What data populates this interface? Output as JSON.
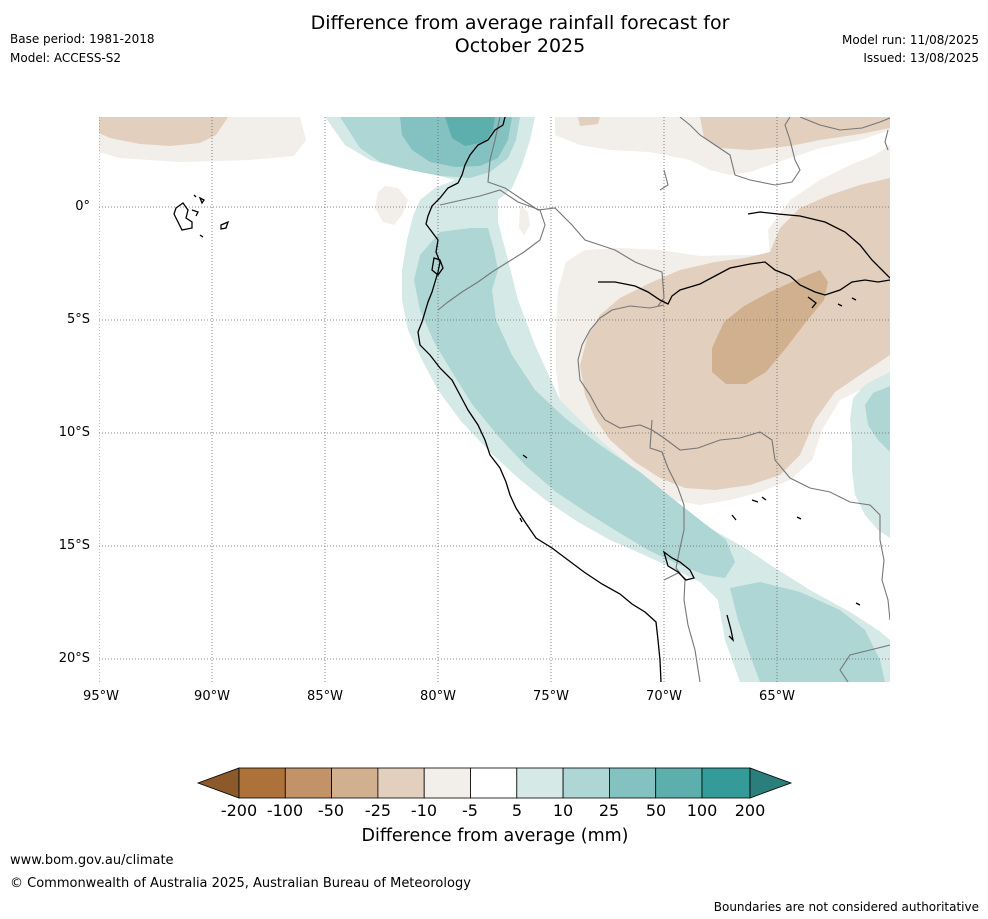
{
  "header": {
    "title_line1": "Difference from average rainfall forecast for",
    "title_line2": "October 2025",
    "base_period": "Base period: 1981-2018",
    "model": "Model: ACCESS-S2",
    "model_run": "Model run: 11/08/2025",
    "issued": "Issued: 13/08/2025"
  },
  "map": {
    "lat_labels": [
      "0°",
      "5°S",
      "10°S",
      "15°S",
      "20°S"
    ],
    "lon_labels": [
      "95°W",
      "90°W",
      "85°W",
      "80°W",
      "75°W",
      "70°W",
      "65°W"
    ]
  },
  "colorbar": {
    "ticks": [
      "-200",
      "-100",
      "-50",
      "-25",
      "-10",
      "-5",
      "5",
      "10",
      "25",
      "50",
      "100",
      "200"
    ],
    "colors": [
      "#8c5a2a",
      "#ad723a",
      "#c29369",
      "#d1b08f",
      "#e2cfbd",
      "#f2eeea",
      "#ffffff",
      "#d5e9e7",
      "#aed6d5",
      "#84c2c1",
      "#5cafad",
      "#349b99",
      "#2a7f7c"
    ],
    "caption": "Difference from average (mm)"
  },
  "footer": {
    "website": "www.bom.gov.au/climate",
    "copyright": "© Commonwealth of Australia 2025, Australian Bureau of Meteorology",
    "disclaimer": "Boundaries are not considered authoritative"
  }
}
